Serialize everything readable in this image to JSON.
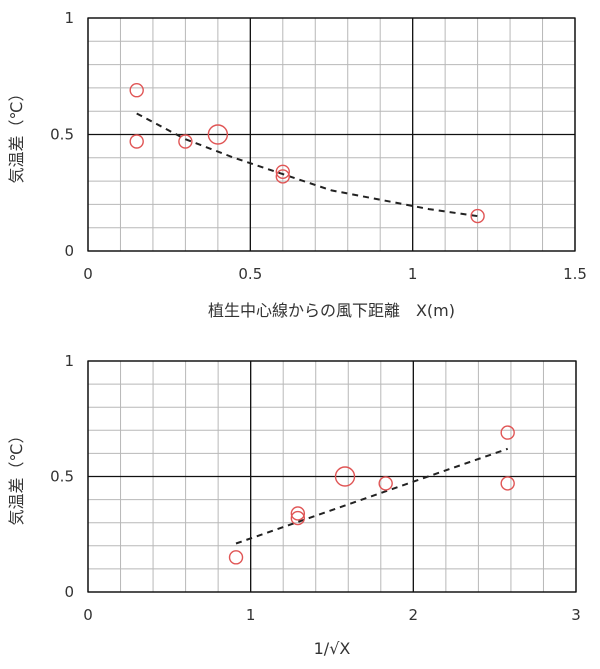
{
  "chart_data": [
    {
      "type": "scatter",
      "xlabel": "植生中心線からの風下距離　X(m)",
      "ylabel": "気温差（℃）",
      "xlim": [
        0,
        1.5
      ],
      "ylim": [
        0,
        1
      ],
      "xticks": [
        "0",
        "0.5",
        "1",
        "1.5"
      ],
      "yticks": [
        "0",
        "0.5",
        "1"
      ],
      "grid": true,
      "marker_color": "#e05555",
      "points": [
        {
          "x": 0.15,
          "y": 0.69
        },
        {
          "x": 0.15,
          "y": 0.47
        },
        {
          "x": 0.3,
          "y": 0.47
        },
        {
          "x": 0.4,
          "y": 0.5,
          "large": true
        },
        {
          "x": 0.6,
          "y": 0.34
        },
        {
          "x": 0.6,
          "y": 0.32
        },
        {
          "x": 1.2,
          "y": 0.15
        }
      ],
      "trendline": {
        "style": "dashed",
        "x": [
          0.15,
          0.3,
          0.45,
          0.6,
          0.75,
          0.9,
          1.05,
          1.2
        ],
        "y": [
          0.59,
          0.48,
          0.4,
          0.33,
          0.26,
          0.22,
          0.18,
          0.15
        ]
      }
    },
    {
      "type": "scatter",
      "xlabel": "1/√X",
      "ylabel": "気温差（℃）",
      "xlim": [
        0,
        3
      ],
      "ylim": [
        0,
        1
      ],
      "xticks": [
        "0",
        "1",
        "2",
        "3"
      ],
      "yticks": [
        "0",
        "0.5",
        "1"
      ],
      "grid": true,
      "marker_color": "#e05555",
      "points": [
        {
          "x": 0.91,
          "y": 0.15
        },
        {
          "x": 1.29,
          "y": 0.34
        },
        {
          "x": 1.29,
          "y": 0.32
        },
        {
          "x": 1.58,
          "y": 0.5,
          "large": true
        },
        {
          "x": 1.83,
          "y": 0.47
        },
        {
          "x": 2.58,
          "y": 0.69
        },
        {
          "x": 2.58,
          "y": 0.47
        }
      ],
      "trendline": {
        "style": "dashed",
        "x": [
          0.91,
          2.58
        ],
        "y": [
          0.21,
          0.62
        ]
      }
    }
  ]
}
